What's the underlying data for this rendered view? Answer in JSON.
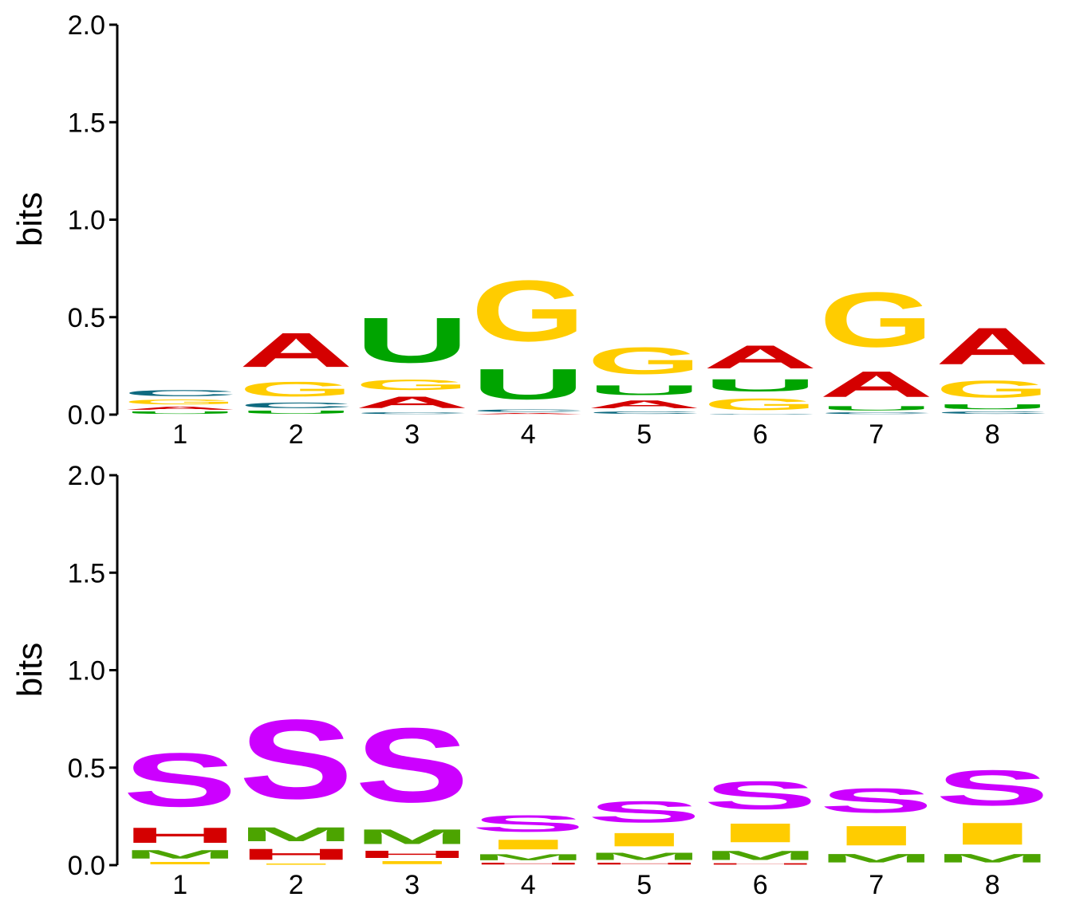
{
  "colors": {
    "A": "#d40000",
    "C": "#0f6a80",
    "G": "#ffcc00",
    "U": "#00a400",
    "S": "#cc00ff",
    "H": "#d40000",
    "M": "#4ca400",
    "I": "#ffcc00"
  },
  "chart_data": [
    {
      "type": "sequence-logo",
      "ylabel": "bits",
      "ylim": [
        0,
        2
      ],
      "yticks": [
        "0.0",
        "0.5",
        "1.0",
        "1.5",
        "2.0"
      ],
      "positions": [
        "1",
        "2",
        "3",
        "4",
        "5",
        "6",
        "7",
        "8"
      ],
      "stacks": [
        [
          {
            "letter": "U",
            "bits": 0.02
          },
          {
            "letter": "A",
            "bits": 0.025
          },
          {
            "letter": "G",
            "bits": 0.04
          },
          {
            "letter": "C",
            "bits": 0.05
          }
        ],
        [
          {
            "letter": "U",
            "bits": 0.025
          },
          {
            "letter": "C",
            "bits": 0.045
          },
          {
            "letter": "G",
            "bits": 0.12
          },
          {
            "letter": "A",
            "bits": 0.28
          }
        ],
        [
          {
            "letter": "C",
            "bits": 0.015
          },
          {
            "letter": "A",
            "bits": 0.095
          },
          {
            "letter": "G",
            "bits": 0.085
          },
          {
            "letter": "U",
            "bits": 0.37
          }
        ],
        [
          {
            "letter": "A",
            "bits": 0.01
          },
          {
            "letter": "C",
            "bits": 0.02
          },
          {
            "letter": "U",
            "bits": 0.25
          },
          {
            "letter": "G",
            "bits": 0.5
          }
        ],
        [
          {
            "letter": "C",
            "bits": 0.02
          },
          {
            "letter": "A",
            "bits": 0.065
          },
          {
            "letter": "U",
            "bits": 0.08
          },
          {
            "letter": "G",
            "bits": 0.22
          }
        ],
        [
          {
            "letter": "C",
            "bits": 0.005
          },
          {
            "letter": "G",
            "bits": 0.095
          },
          {
            "letter": "U",
            "bits": 0.1
          },
          {
            "letter": "A",
            "bits": 0.19
          }
        ],
        [
          {
            "letter": "C",
            "bits": 0.015
          },
          {
            "letter": "U",
            "bits": 0.035
          },
          {
            "letter": "A",
            "bits": 0.21
          },
          {
            "letter": "G",
            "bits": 0.45
          }
        ],
        [
          {
            "letter": "C",
            "bits": 0.02
          },
          {
            "letter": "U",
            "bits": 0.04
          },
          {
            "letter": "G",
            "bits": 0.14
          },
          {
            "letter": "A",
            "bits": 0.3
          }
        ]
      ]
    },
    {
      "type": "sequence-logo",
      "ylabel": "bits",
      "ylim": [
        0,
        2
      ],
      "yticks": [
        "0.0",
        "0.5",
        "1.0",
        "1.5",
        "2.0"
      ],
      "positions": [
        "1",
        "2",
        "3",
        "4",
        "5",
        "6",
        "7",
        "8"
      ],
      "stacks": [
        [
          {
            "letter": "I",
            "bits": 0.02
          },
          {
            "letter": "M",
            "bits": 0.07
          },
          {
            "letter": "H",
            "bits": 0.125
          },
          {
            "letter": "S",
            "bits": 0.44
          }
        ],
        [
          {
            "letter": "I",
            "bits": 0.01
          },
          {
            "letter": "H",
            "bits": 0.09
          },
          {
            "letter": "M",
            "bits": 0.115
          },
          {
            "letter": "S",
            "bits": 0.65
          }
        ],
        [
          {
            "letter": "I",
            "bits": 0.025
          },
          {
            "letter": "H",
            "bits": 0.06
          },
          {
            "letter": "M",
            "bits": 0.12
          },
          {
            "letter": "S",
            "bits": 0.61
          }
        ],
        [
          {
            "letter": "H",
            "bits": 0.015
          },
          {
            "letter": "M",
            "bits": 0.05
          },
          {
            "letter": "I",
            "bits": 0.08
          },
          {
            "letter": "S",
            "bits": 0.135
          }
        ],
        [
          {
            "letter": "H",
            "bits": 0.015
          },
          {
            "letter": "M",
            "bits": 0.06
          },
          {
            "letter": "I",
            "bits": 0.11
          },
          {
            "letter": "S",
            "bits": 0.175
          }
        ],
        [
          {
            "letter": "H",
            "bits": 0.012
          },
          {
            "letter": "M",
            "bits": 0.075
          },
          {
            "letter": "I",
            "bits": 0.155
          },
          {
            "letter": "S",
            "bits": 0.23
          }
        ],
        [
          {
            "letter": "M",
            "bits": 0.07
          },
          {
            "letter": "I",
            "bits": 0.16
          },
          {
            "letter": "S",
            "bits": 0.2
          }
        ],
        [
          {
            "letter": "M",
            "bits": 0.07
          },
          {
            "letter": "I",
            "bits": 0.18
          },
          {
            "letter": "S",
            "bits": 0.29
          }
        ]
      ]
    }
  ]
}
